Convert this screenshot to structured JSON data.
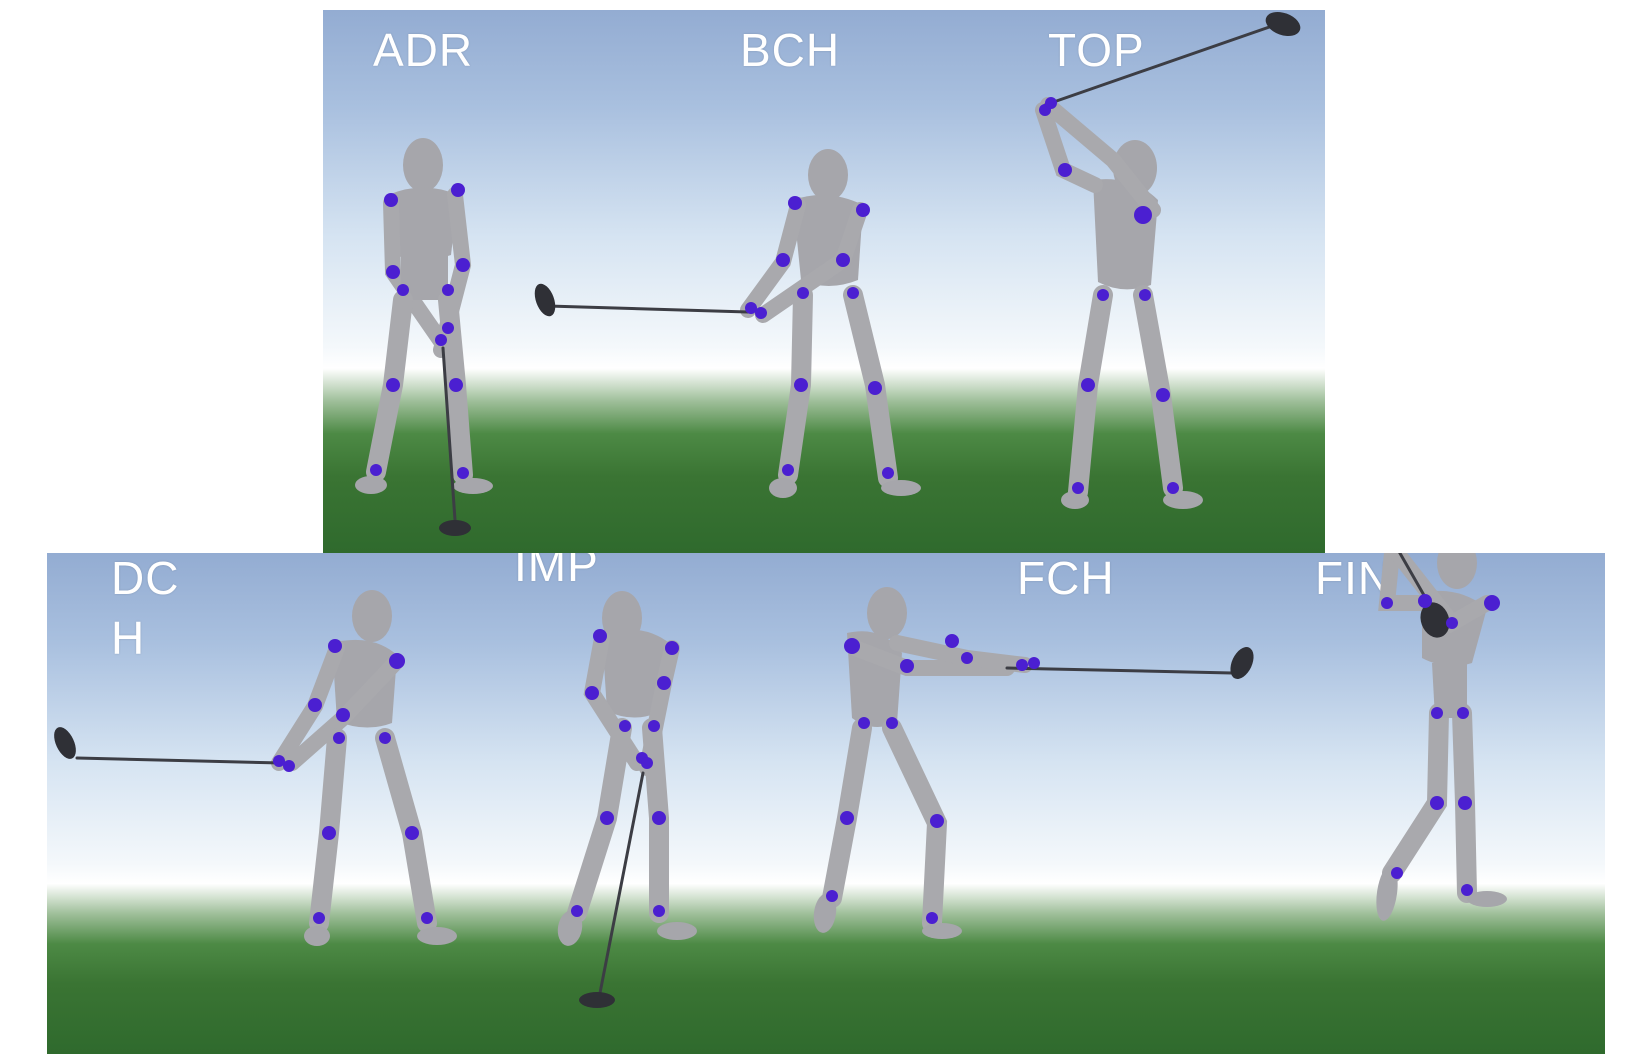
{
  "phases": {
    "adr": "ADR",
    "bch": "BCH",
    "top": "TOP",
    "dch": "DC\nH",
    "imp": "IMP",
    "fch": "FCH",
    "fin": "FIN"
  },
  "colors": {
    "sky": "#93acd2",
    "grass": "#2f6a2d",
    "body": "#a6a6ab",
    "joint": "#4b1fd1",
    "club": "#3c3d44"
  }
}
